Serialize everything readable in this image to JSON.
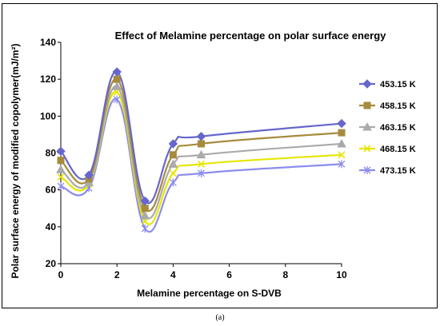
{
  "chart_data": {
    "type": "line",
    "title": "Effect of Melamine percentage on polar surface energy",
    "xlabel": "Melamine percentage on S-DVB",
    "ylabel": "Polar surface energy of modified copolymer(mJ/m²)",
    "x": [
      0,
      1,
      2,
      3,
      4,
      5,
      10
    ],
    "xlim": [
      0,
      10
    ],
    "ylim": [
      20,
      140
    ],
    "xticks": [
      0,
      2,
      4,
      6,
      8,
      10
    ],
    "yticks": [
      20,
      40,
      60,
      80,
      100,
      120,
      140
    ],
    "grid": false,
    "legend_position": "right",
    "series": [
      {
        "name": "453.15 K",
        "color": "#6666CC",
        "marker": "diamond",
        "values": [
          81,
          68,
          124,
          54,
          85,
          89,
          96
        ]
      },
      {
        "name": "458.15 K",
        "color": "#A68B3C",
        "marker": "square",
        "values": [
          76,
          66,
          120,
          50,
          79,
          85,
          91
        ]
      },
      {
        "name": "463.15 K",
        "color": "#AAAAAA",
        "marker": "triangle",
        "values": [
          71,
          64,
          116,
          46,
          74,
          79,
          85
        ]
      },
      {
        "name": "468.15 K",
        "color": "#E6E600",
        "marker": "x",
        "values": [
          67,
          63,
          113,
          43,
          69,
          74,
          79
        ]
      },
      {
        "name": "473.15 K",
        "color": "#8C8CEE",
        "marker": "star",
        "values": [
          62,
          61,
          109,
          39,
          64,
          69,
          74
        ]
      }
    ]
  },
  "caption": "(a)"
}
